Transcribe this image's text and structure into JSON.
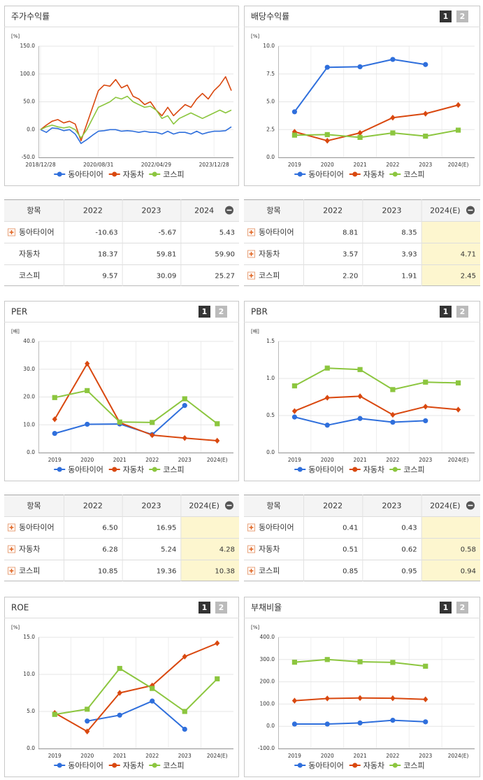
{
  "chart_data": [
    {
      "type": "line",
      "title": "주가수익률",
      "y_unit": "[%]",
      "x": [
        0,
        1,
        2,
        3,
        4,
        5,
        6,
        7,
        8,
        9,
        10,
        11,
        12,
        13,
        14,
        15,
        16,
        17,
        18,
        19,
        20,
        21,
        22,
        23,
        24,
        25,
        26,
        27,
        28,
        29,
        30,
        31,
        32,
        33
      ],
      "xlim": [
        0,
        33
      ],
      "xticks": [
        {
          "value": 0,
          "label": "2018/12/28"
        },
        {
          "value": 10,
          "label": "2020/08/31"
        },
        {
          "value": 20,
          "label": "2022/04/29"
        },
        {
          "value": 30,
          "label": "2023/12/28"
        }
      ],
      "ylim": [
        -50,
        150
      ],
      "yticks": [
        {
          "value": -50,
          "label": "-50.0"
        },
        {
          "value": 0,
          "label": "0.0"
        },
        {
          "value": 50,
          "label": "50.0"
        },
        {
          "value": 100,
          "label": "100.0"
        },
        {
          "value": 150,
          "label": "150.0"
        }
      ],
      "grid": true,
      "series": [
        {
          "name": "동아타이어",
          "color": "#2f6fdc",
          "values": [
            0,
            -5,
            3,
            2,
            -2,
            0,
            -8,
            -25,
            -18,
            -10,
            -3,
            -2,
            0,
            0,
            -3,
            -2,
            -3,
            -5,
            -3,
            -5,
            -5,
            -8,
            -3,
            -8,
            -5,
            -5,
            -8,
            -3,
            -8,
            -5,
            -3,
            -3,
            -2,
            5
          ]
        },
        {
          "name": "자동차",
          "color": "#d9480f",
          "values": [
            0,
            8,
            15,
            18,
            12,
            15,
            10,
            -20,
            10,
            40,
            70,
            80,
            78,
            90,
            75,
            80,
            60,
            55,
            45,
            50,
            35,
            25,
            40,
            25,
            35,
            45,
            40,
            55,
            65,
            55,
            70,
            80,
            95,
            70
          ]
        },
        {
          "name": "코스피",
          "color": "#8cc63f",
          "values": [
            0,
            5,
            8,
            5,
            3,
            5,
            0,
            -15,
            0,
            20,
            40,
            45,
            50,
            58,
            55,
            60,
            50,
            45,
            40,
            42,
            35,
            20,
            25,
            10,
            20,
            25,
            30,
            25,
            20,
            25,
            30,
            35,
            30,
            35
          ]
        }
      ]
    },
    {
      "type": "line",
      "title": "배당수익률",
      "buttons": [
        "1",
        "2"
      ],
      "y_unit": "[%]",
      "categories": [
        "2019",
        "2020",
        "2021",
        "2022",
        "2023",
        "2024(E)"
      ],
      "ylim": [
        0,
        10
      ],
      "yticks": [
        {
          "value": 0,
          "label": "0.0"
        },
        2.5,
        {
          "value": 5,
          "label": "5.0"
        },
        7.5,
        {
          "value": 10,
          "label": "10.0"
        }
      ],
      "grid": true,
      "series": [
        {
          "name": "동아타이어",
          "color": "#2f6fdc",
          "marker": "circle",
          "values": [
            4.1,
            8.1,
            8.15,
            8.81,
            8.35,
            null
          ]
        },
        {
          "name": "자동차",
          "color": "#d9480f",
          "marker": "diamond",
          "values": [
            2.3,
            1.5,
            2.2,
            3.57,
            3.93,
            4.71
          ]
        },
        {
          "name": "코스피",
          "color": "#8cc63f",
          "marker": "square",
          "values": [
            2.0,
            2.05,
            1.8,
            2.2,
            1.91,
            2.45
          ]
        }
      ]
    },
    {
      "type": "line",
      "title": "PER",
      "buttons": [
        "1",
        "2"
      ],
      "y_unit": "[배]",
      "categories": [
        "2019",
        "2020",
        "2021",
        "2022",
        "2023",
        "2024(E)"
      ],
      "ylim": [
        0,
        40
      ],
      "yticks": [
        {
          "value": 0,
          "label": "0.0"
        },
        {
          "value": 10,
          "label": "10.0"
        },
        {
          "value": 20,
          "label": "20.0"
        },
        {
          "value": 30,
          "label": "30.0"
        },
        {
          "value": 40,
          "label": "40.0"
        }
      ],
      "grid": true,
      "series": [
        {
          "name": "동아타이어",
          "color": "#2f6fdc",
          "marker": "circle",
          "values": [
            6.9,
            10.2,
            10.3,
            6.5,
            16.95,
            null
          ]
        },
        {
          "name": "자동차",
          "color": "#d9480f",
          "marker": "diamond",
          "values": [
            12.0,
            32.0,
            10.8,
            6.28,
            5.24,
            4.28
          ]
        },
        {
          "name": "코스피",
          "color": "#8cc63f",
          "marker": "square",
          "values": [
            19.8,
            22.3,
            11.0,
            10.85,
            19.36,
            10.38
          ]
        }
      ]
    },
    {
      "type": "line",
      "title": "PBR",
      "buttons": [
        "1",
        "2"
      ],
      "y_unit": "[배]",
      "categories": [
        "2019",
        "2020",
        "2021",
        "2022",
        "2023",
        "2024(E)"
      ],
      "ylim": [
        0,
        1.5
      ],
      "yticks": [
        {
          "value": 0,
          "label": "0.0"
        },
        0.5,
        {
          "value": 1,
          "label": "1.0"
        },
        1.5
      ],
      "grid": true,
      "series": [
        {
          "name": "동아타이어",
          "color": "#2f6fdc",
          "marker": "circle",
          "values": [
            0.48,
            0.37,
            0.46,
            0.41,
            0.43,
            null
          ]
        },
        {
          "name": "자동차",
          "color": "#d9480f",
          "marker": "diamond",
          "values": [
            0.56,
            0.74,
            0.76,
            0.51,
            0.62,
            0.58
          ]
        },
        {
          "name": "코스피",
          "color": "#8cc63f",
          "marker": "square",
          "values": [
            0.9,
            1.14,
            1.12,
            0.85,
            0.95,
            0.94
          ]
        }
      ]
    },
    {
      "type": "line",
      "title": "ROE",
      "buttons": [
        "1",
        "2"
      ],
      "y_unit": "[%]",
      "categories": [
        "2019",
        "2020",
        "2021",
        "2022",
        "2023",
        "2024(E)"
      ],
      "ylim": [
        0,
        15
      ],
      "yticks": [
        {
          "value": 0,
          "label": "0.0"
        },
        {
          "value": 5,
          "label": "5.0"
        },
        {
          "value": 10,
          "label": "10.0"
        },
        {
          "value": 15,
          "label": "15.0"
        }
      ],
      "grid": true,
      "series": [
        {
          "name": "동아타이어",
          "color": "#2f6fdc",
          "marker": "circle",
          "values": [
            null,
            3.7,
            4.5,
            6.4,
            2.6,
            null
          ]
        },
        {
          "name": "자동차",
          "color": "#d9480f",
          "marker": "diamond",
          "values": [
            4.8,
            2.3,
            7.5,
            8.5,
            12.4,
            14.2
          ]
        },
        {
          "name": "코스피",
          "color": "#8cc63f",
          "marker": "square",
          "values": [
            4.6,
            5.3,
            10.8,
            8.1,
            5.0,
            9.4
          ]
        }
      ]
    },
    {
      "type": "line",
      "title": "부채비율",
      "buttons": [
        "1",
        "2"
      ],
      "y_unit": "[%]",
      "categories": [
        "2019",
        "2020",
        "2021",
        "2022",
        "2023",
        "2024(E)"
      ],
      "ylim": [
        -100,
        400
      ],
      "yticks": [
        {
          "value": -100,
          "label": "-100.0"
        },
        {
          "value": 0,
          "label": "0.0"
        },
        {
          "value": 100,
          "label": "100.0"
        },
        {
          "value": 200,
          "label": "200.0"
        },
        {
          "value": 300,
          "label": "300.0"
        },
        {
          "value": 400,
          "label": "400.0"
        }
      ],
      "grid": true,
      "series": [
        {
          "name": "동아타이어",
          "color": "#2f6fdc",
          "marker": "circle",
          "values": [
            10,
            10,
            15,
            27,
            20,
            null
          ]
        },
        {
          "name": "자동차",
          "color": "#d9480f",
          "marker": "diamond",
          "values": [
            115,
            125,
            127,
            126,
            121,
            null
          ]
        },
        {
          "name": "코스피",
          "color": "#8cc63f",
          "marker": "square",
          "values": [
            288,
            300,
            290,
            287,
            270,
            null
          ]
        }
      ]
    }
  ],
  "tables": [
    {
      "columns": [
        "항목",
        "2022",
        "2023",
        "2024"
      ],
      "highlight_last": false,
      "rows": [
        {
          "name": "동아타이어",
          "icon": true,
          "values": [
            "-10.63",
            "-5.67",
            "5.43"
          ]
        },
        {
          "name": "자동차",
          "icon": false,
          "values": [
            "18.37",
            "59.81",
            "59.90"
          ]
        },
        {
          "name": "코스피",
          "icon": false,
          "values": [
            "9.57",
            "30.09",
            "25.27"
          ]
        }
      ]
    },
    {
      "columns": [
        "항목",
        "2022",
        "2023",
        "2024(E)"
      ],
      "highlight_last": true,
      "rows": [
        {
          "name": "동아타이어",
          "icon": true,
          "values": [
            "8.81",
            "8.35",
            null
          ]
        },
        {
          "name": "자동차",
          "icon": true,
          "values": [
            "3.57",
            "3.93",
            "4.71"
          ]
        },
        {
          "name": "코스피",
          "icon": true,
          "values": [
            "2.20",
            "1.91",
            "2.45"
          ]
        }
      ]
    },
    {
      "columns": [
        "항목",
        "2022",
        "2023",
        "2024(E)"
      ],
      "highlight_last": true,
      "rows": [
        {
          "name": "동아타이어",
          "icon": true,
          "values": [
            "6.50",
            "16.95",
            null
          ]
        },
        {
          "name": "자동차",
          "icon": true,
          "values": [
            "6.28",
            "5.24",
            "4.28"
          ]
        },
        {
          "name": "코스피",
          "icon": true,
          "values": [
            "10.85",
            "19.36",
            "10.38"
          ]
        }
      ]
    },
    {
      "columns": [
        "항목",
        "2022",
        "2023",
        "2024(E)"
      ],
      "highlight_last": true,
      "rows": [
        {
          "name": "동아타이어",
          "icon": true,
          "values": [
            "0.41",
            "0.43",
            null
          ]
        },
        {
          "name": "자동차",
          "icon": true,
          "values": [
            "0.51",
            "0.62",
            "0.58"
          ]
        },
        {
          "name": "코스피",
          "icon": true,
          "values": [
            "0.85",
            "0.95",
            "0.94"
          ]
        }
      ]
    }
  ]
}
